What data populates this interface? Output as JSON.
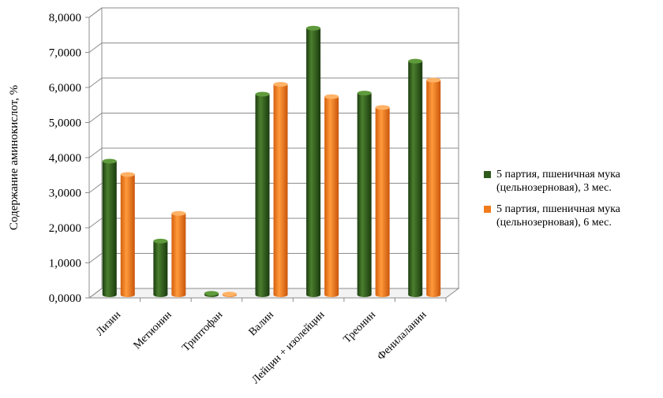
{
  "chart_data": {
    "type": "bar",
    "ylabel": "Содержание аминокислот, %",
    "xlabel": "",
    "ylim": [
      0,
      8
    ],
    "y_ticks": [
      "0,0000",
      "1,0000",
      "2,0000",
      "3,0000",
      "4,0000",
      "5,0000",
      "6,0000",
      "7,0000",
      "8,0000"
    ],
    "categories": [
      "Лизин",
      "Метионин",
      "Триптофан",
      "Валин",
      "Лейцин + изолейцин",
      "Треонин",
      "Фенилаланин"
    ],
    "series": [
      {
        "name": "5 партия, пшеничная мука (цельнозерновая), 3 мес.",
        "color": "#2e5a1c",
        "values": [
          3.81,
          1.53,
          0.04,
          5.72,
          7.6,
          5.75,
          6.66
        ]
      },
      {
        "name": "5 партия, пшеничная мука (цельнозерновая), 6 мес.",
        "color": "#f07c1e",
        "values": [
          3.43,
          2.32,
          0.02,
          6.0,
          5.65,
          5.34,
          6.12
        ]
      }
    ],
    "grid": true,
    "legend_position": "right",
    "style": "3d-cylinder"
  }
}
